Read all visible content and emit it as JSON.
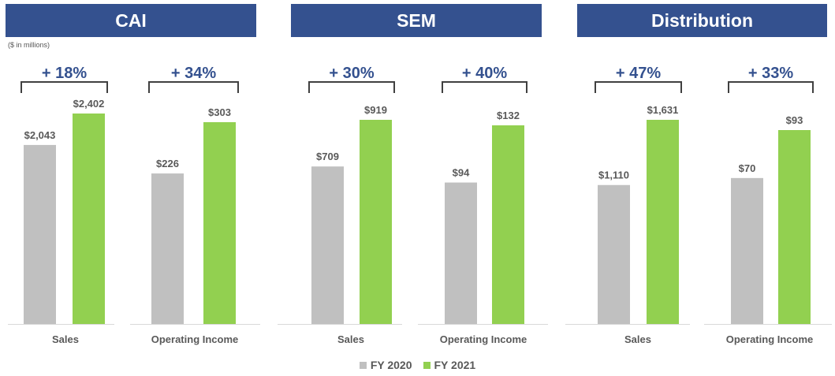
{
  "segments": [
    {
      "title": "CAI"
    },
    {
      "title": "SEM"
    },
    {
      "title": "Distribution"
    }
  ],
  "units_note": "($ in millions)",
  "legend": [
    {
      "label": "FY 2020",
      "color": "#c0c0c0"
    },
    {
      "label": "FY 2021",
      "color": "#92d050"
    }
  ],
  "colors": {
    "fy2020": "#c0c0c0",
    "fy2021": "#92d050",
    "header": "#34518f",
    "growth": "#34518f"
  },
  "chart_data": [
    {
      "type": "bar",
      "segment": "CAI",
      "category": "Sales",
      "series": [
        {
          "name": "FY 2020",
          "values": [
            2043
          ],
          "label": "$2,043"
        },
        {
          "name": "FY 2021",
          "values": [
            2402
          ],
          "label": "$2,402"
        }
      ],
      "growth": "+ 18%"
    },
    {
      "type": "bar",
      "segment": "CAI",
      "category": "Operating Income",
      "series": [
        {
          "name": "FY 2020",
          "values": [
            226
          ],
          "label": "$226"
        },
        {
          "name": "FY 2021",
          "values": [
            303
          ],
          "label": "$303"
        }
      ],
      "growth": "+ 34%"
    },
    {
      "type": "bar",
      "segment": "SEM",
      "category": "Sales",
      "series": [
        {
          "name": "FY 2020",
          "values": [
            709
          ],
          "label": "$709"
        },
        {
          "name": "FY 2021",
          "values": [
            919
          ],
          "label": "$919"
        }
      ],
      "growth": "+ 30%"
    },
    {
      "type": "bar",
      "segment": "SEM",
      "category": "Operating Income",
      "series": [
        {
          "name": "FY 2020",
          "values": [
            94
          ],
          "label": "$94"
        },
        {
          "name": "FY 2021",
          "values": [
            132
          ],
          "label": "$132"
        }
      ],
      "growth": "+ 40%"
    },
    {
      "type": "bar",
      "segment": "Distribution",
      "category": "Sales",
      "series": [
        {
          "name": "FY 2020",
          "values": [
            1110
          ],
          "label": "$1,110"
        },
        {
          "name": "FY 2021",
          "values": [
            1631
          ],
          "label": "$1,631"
        }
      ],
      "growth": "+ 47%"
    },
    {
      "type": "bar",
      "segment": "Distribution",
      "category": "Operating Income",
      "series": [
        {
          "name": "FY 2020",
          "values": [
            70
          ],
          "label": "$70"
        },
        {
          "name": "FY 2021",
          "values": [
            93
          ],
          "label": "$93"
        }
      ],
      "growth": "+ 33%"
    }
  ]
}
